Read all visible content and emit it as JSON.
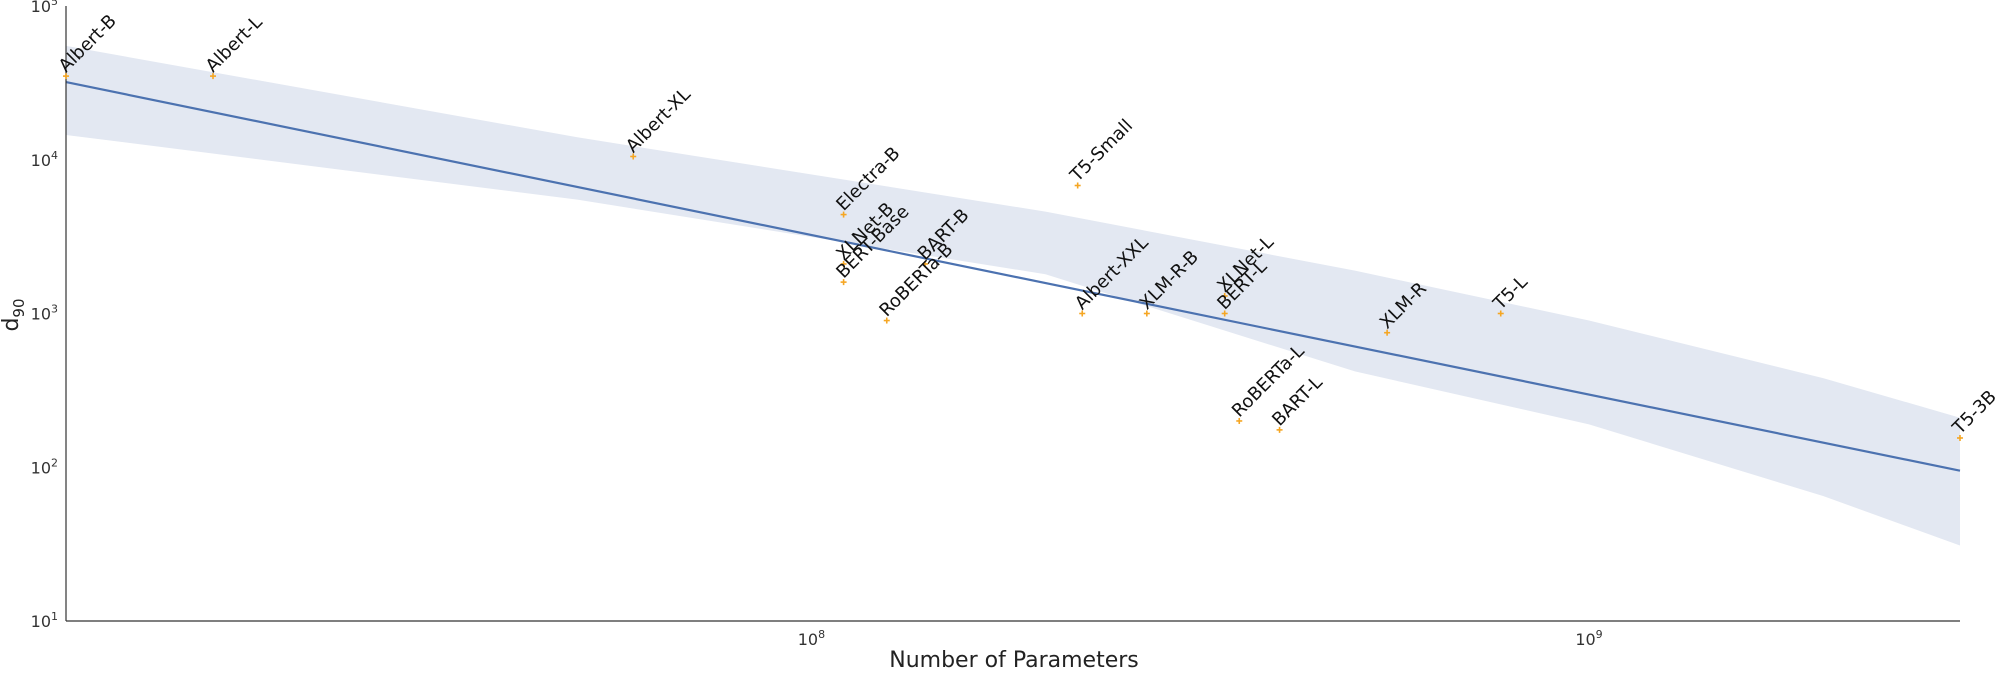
{
  "chart_data": {
    "type": "scatter",
    "title": "",
    "xlabel": "Number of Parameters",
    "ylabel_base": "d",
    "ylabel_sub": "90",
    "x_scale": "log",
    "y_scale": "log",
    "xlim": [
      11000000,
      3000000000
    ],
    "ylim": [
      10,
      100000
    ],
    "x_ticks": [
      {
        "base": "10",
        "exp": "8",
        "value": 100000000
      },
      {
        "base": "10",
        "exp": "9",
        "value": 1000000000
      }
    ],
    "y_ticks": [
      {
        "base": "10",
        "exp": "1",
        "value": 10
      },
      {
        "base": "10",
        "exp": "2",
        "value": 100
      },
      {
        "base": "10",
        "exp": "3",
        "value": 1000
      },
      {
        "base": "10",
        "exp": "4",
        "value": 10000
      },
      {
        "base": "10",
        "exp": "5",
        "value": 100000
      }
    ],
    "grid": false,
    "legend": "none",
    "colors": {
      "points": "#f5a623",
      "fit_line": "#4c72b0",
      "confidence_band": "#e3e8f2",
      "axis": "#333333"
    },
    "points": [
      {
        "label": "Albert-B",
        "x": 11000000,
        "y": 35000
      },
      {
        "label": "Albert-L",
        "x": 17000000,
        "y": 35000
      },
      {
        "label": "Albert-XL",
        "x": 59000000,
        "y": 10500
      },
      {
        "label": "Electra-B",
        "x": 110000000,
        "y": 4400
      },
      {
        "label": "XLNet-B",
        "x": 110000000,
        "y": 2100
      },
      {
        "label": "BERT-Base",
        "x": 110000000,
        "y": 1600
      },
      {
        "label": "BART-B",
        "x": 140000000,
        "y": 2100
      },
      {
        "label": "RoBERTa-B",
        "x": 125000000,
        "y": 900
      },
      {
        "label": "T5-Small",
        "x": 220000000,
        "y": 6800
      },
      {
        "label": "Albert-XXL",
        "x": 223000000,
        "y": 1000
      },
      {
        "label": "XLM-R-B",
        "x": 270000000,
        "y": 1000
      },
      {
        "label": "XLNet-L",
        "x": 340000000,
        "y": 1300
      },
      {
        "label": "BERT-L",
        "x": 340000000,
        "y": 1000
      },
      {
        "label": "RoBERTa-L",
        "x": 355000000,
        "y": 200
      },
      {
        "label": "BART-L",
        "x": 400000000,
        "y": 175
      },
      {
        "label": "XLM-R",
        "x": 550000000,
        "y": 750
      },
      {
        "label": "T5-L",
        "x": 770000000,
        "y": 1000
      },
      {
        "label": "T5-3B",
        "x": 3000000000,
        "y": 155
      }
    ],
    "fit_line": [
      {
        "x": 11000000,
        "y": 32000
      },
      {
        "x": 3000000000,
        "y": 95
      }
    ],
    "confidence_band": {
      "x": [
        11000000,
        50000000,
        200000000,
        500000000,
        1000000000,
        2000000000,
        3000000000
      ],
      "upper": [
        55000,
        14000,
        4600,
        1900,
        900,
        380,
        210
      ],
      "lower": [
        14500,
        5500,
        1800,
        420,
        190,
        65,
        31
      ]
    }
  }
}
